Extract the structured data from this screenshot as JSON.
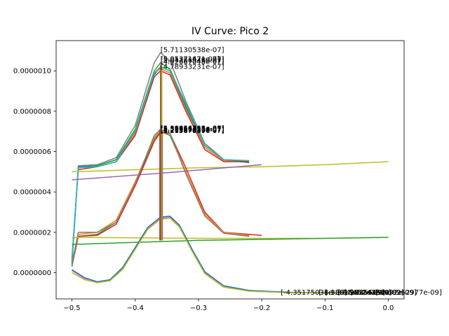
{
  "chart_data": {
    "type": "line",
    "title": "IV Curve: Pico 2",
    "xlabel": "",
    "ylabel": "",
    "xlim": [
      -0.525,
      0.025
    ],
    "ylim": [
      -1.3e-07,
      1.15e-06
    ],
    "xticks": [
      -0.5,
      -0.4,
      -0.3,
      -0.2,
      -0.1,
      0.0
    ],
    "xtick_labels": [
      "−0.5",
      "−0.4",
      "−0.3",
      "−0.2",
      "−0.1",
      "0.0"
    ],
    "yticks": [
      0.0,
      2e-07,
      4e-07,
      6e-07,
      8e-07,
      1e-06
    ],
    "ytick_labels": [
      "0.0000000",
      "0.0000002",
      "0.0000004",
      "0.0000006",
      "0.0000008",
      "0.0000010"
    ],
    "grid": false,
    "legend": "none",
    "series": [
      {
        "color": "#1f77b4",
        "values": [
          [
            -0.5,
            5e-08
          ],
          [
            -0.49,
            5.25e-07
          ],
          [
            -0.46,
            5.3e-07
          ],
          [
            -0.43,
            5.6e-07
          ],
          [
            -0.4,
            7e-07
          ],
          [
            -0.37,
            9.8e-07
          ],
          [
            -0.36,
            1.02e-06
          ],
          [
            -0.345,
            1e-06
          ],
          [
            -0.32,
            8.2e-07
          ],
          [
            -0.29,
            6.3e-07
          ],
          [
            -0.26,
            5.6e-07
          ],
          [
            -0.22,
            5.45e-07
          ]
        ]
      },
      {
        "color": "#ff7f0e",
        "values": [
          [
            -0.5,
            6e-08
          ],
          [
            -0.49,
            5.2e-07
          ],
          [
            -0.46,
            5.25e-07
          ],
          [
            -0.43,
            5.5e-07
          ],
          [
            -0.4,
            6.9e-07
          ],
          [
            -0.37,
            9.9e-07
          ],
          [
            -0.36,
            1.01e-06
          ],
          [
            -0.345,
            9.9e-07
          ],
          [
            -0.32,
            8.1e-07
          ],
          [
            -0.29,
            6.2e-07
          ],
          [
            -0.26,
            5.55e-07
          ],
          [
            -0.22,
            5.5e-07
          ]
        ]
      },
      {
        "color": "#2ca02c",
        "values": [
          [
            -0.5,
            4e-08
          ],
          [
            -0.49,
            5.2e-07
          ],
          [
            -0.46,
            5.3e-07
          ],
          [
            -0.43,
            5.6e-07
          ],
          [
            -0.4,
            7.1e-07
          ],
          [
            -0.37,
            1e-06
          ],
          [
            -0.36,
            1.04e-06
          ],
          [
            -0.345,
            1.01e-06
          ],
          [
            -0.32,
            8.3e-07
          ],
          [
            -0.29,
            6.4e-07
          ],
          [
            -0.26,
            5.6e-07
          ],
          [
            -0.22,
            5.5e-07
          ]
        ]
      },
      {
        "color": "#d62728",
        "values": [
          [
            -0.5,
            7e-08
          ],
          [
            -0.49,
            5.1e-07
          ],
          [
            -0.46,
            5.25e-07
          ],
          [
            -0.43,
            5.5e-07
          ],
          [
            -0.4,
            6.8e-07
          ],
          [
            -0.37,
            9.7e-07
          ],
          [
            -0.36,
            1e-06
          ],
          [
            -0.345,
            9.8e-07
          ],
          [
            -0.32,
            8e-07
          ],
          [
            -0.29,
            6.1e-07
          ],
          [
            -0.26,
            5.5e-07
          ],
          [
            -0.22,
            5.5e-07
          ]
        ]
      },
      {
        "color": "#7f7f7f",
        "values": [
          [
            -0.5,
            5e-08
          ],
          [
            -0.49,
            5.3e-07
          ],
          [
            -0.46,
            5.35e-07
          ],
          [
            -0.43,
            5.7e-07
          ],
          [
            -0.4,
            7.3e-07
          ],
          [
            -0.37,
            1.04e-06
          ],
          [
            -0.36,
            1.09e-06
          ],
          [
            -0.345,
            1.05e-06
          ],
          [
            -0.32,
            8.5e-07
          ],
          [
            -0.29,
            6.4e-07
          ],
          [
            -0.26,
            5.6e-07
          ],
          [
            -0.22,
            5.55e-07
          ]
        ]
      },
      {
        "color": "#17becf",
        "values": [
          [
            -0.5,
            6e-08
          ],
          [
            -0.49,
            5.2e-07
          ],
          [
            -0.46,
            5.25e-07
          ],
          [
            -0.43,
            5.5e-07
          ],
          [
            -0.4,
            7e-07
          ],
          [
            -0.37,
            9.9e-07
          ],
          [
            -0.36,
            1.02e-06
          ],
          [
            -0.345,
            1e-06
          ],
          [
            -0.32,
            8.4e-07
          ],
          [
            -0.29,
            6.3e-07
          ],
          [
            -0.26,
            5.6e-07
          ],
          [
            -0.22,
            5.55e-07
          ]
        ]
      },
      {
        "color": "#bcbd22",
        "values": [
          [
            -0.5,
            5e-07
          ],
          [
            -0.4,
            5.1e-07
          ],
          [
            -0.3,
            5.2e-07
          ],
          [
            -0.2,
            5.25e-07
          ],
          [
            -0.1,
            5.35e-07
          ],
          [
            0.0,
            5.5e-07
          ]
        ]
      },
      {
        "color": "#9467bd",
        "values": [
          [
            -0.5,
            4.6e-07
          ],
          [
            -0.35,
            4.95e-07
          ],
          [
            -0.2,
            5.35e-07
          ]
        ]
      },
      {
        "color": "#2ca02c",
        "values": [
          [
            -0.5,
            3e-08
          ],
          [
            -0.49,
            1.8e-07
          ],
          [
            -0.46,
            1.9e-07
          ],
          [
            -0.43,
            2.5e-07
          ],
          [
            -0.4,
            4.4e-07
          ],
          [
            -0.37,
            6.6e-07
          ],
          [
            -0.36,
            7e-07
          ],
          [
            -0.345,
            6.8e-07
          ],
          [
            -0.32,
            5e-07
          ],
          [
            -0.29,
            2.9e-07
          ],
          [
            -0.26,
            2e-07
          ],
          [
            -0.22,
            1.8e-07
          ]
        ]
      },
      {
        "color": "#d62728",
        "values": [
          [
            -0.5,
            4e-08
          ],
          [
            -0.49,
            1.8e-07
          ],
          [
            -0.46,
            1.85e-07
          ],
          [
            -0.43,
            2.4e-07
          ],
          [
            -0.4,
            4.3e-07
          ],
          [
            -0.37,
            6.5e-07
          ],
          [
            -0.36,
            6.95e-07
          ],
          [
            -0.345,
            6.9e-07
          ],
          [
            -0.32,
            5.2e-07
          ],
          [
            -0.29,
            3e-07
          ],
          [
            -0.26,
            2e-07
          ],
          [
            -0.2,
            1.85e-07
          ]
        ]
      },
      {
        "color": "#ff7f0e",
        "values": [
          [
            -0.5,
            5e-08
          ],
          [
            -0.49,
            1.9e-07
          ],
          [
            -0.46,
            2e-07
          ],
          [
            -0.43,
            2.6e-07
          ],
          [
            -0.4,
            4.5e-07
          ],
          [
            -0.37,
            6.7e-07
          ],
          [
            -0.36,
            7.1e-07
          ],
          [
            -0.345,
            6.9e-07
          ],
          [
            -0.32,
            5e-07
          ],
          [
            -0.29,
            2.9e-07
          ],
          [
            -0.26,
            2e-07
          ],
          [
            -0.22,
            1.85e-07
          ]
        ]
      },
      {
        "color": "#7f7f7f",
        "values": [
          [
            -0.5,
            4e-08
          ],
          [
            -0.49,
            2e-07
          ],
          [
            -0.46,
            2e-07
          ],
          [
            -0.43,
            2.5e-07
          ],
          [
            -0.4,
            4.4e-07
          ],
          [
            -0.37,
            6.8e-07
          ],
          [
            -0.36,
            7.1e-07
          ],
          [
            -0.345,
            6.9e-07
          ],
          [
            -0.32,
            4.9e-07
          ],
          [
            -0.29,
            2.8e-07
          ],
          [
            -0.26,
            1.95e-07
          ],
          [
            -0.22,
            1.8e-07
          ]
        ]
      },
      {
        "color": "#bcbd22",
        "values": [
          [
            -0.5,
            1.75e-07
          ],
          [
            -0.3,
            1.7e-07
          ],
          [
            -0.1,
            1.7e-07
          ],
          [
            0.0,
            1.75e-07
          ]
        ]
      },
      {
        "color": "#2ca02c",
        "values": [
          [
            -0.5,
            1.4e-07
          ],
          [
            -0.4,
            1.5e-07
          ],
          [
            -0.3,
            1.6e-07
          ],
          [
            -0.2,
            1.65e-07
          ],
          [
            -0.1,
            1.7e-07
          ],
          [
            0.0,
            1.75e-07
          ]
        ]
      },
      {
        "color": "#e377c2",
        "values": [
          [
            -0.5,
            1e-08
          ],
          [
            -0.48,
            -3e-08
          ],
          [
            -0.46,
            -5e-08
          ],
          [
            -0.44,
            -4e-08
          ],
          [
            -0.42,
            2e-08
          ],
          [
            -0.4,
            1.2e-07
          ],
          [
            -0.38,
            2.2e-07
          ],
          [
            -0.36,
            2.7e-07
          ],
          [
            -0.345,
            2.75e-07
          ],
          [
            -0.33,
            2.3e-07
          ],
          [
            -0.31,
            1.1e-07
          ],
          [
            -0.29,
            0.0
          ],
          [
            -0.26,
            -7e-08
          ],
          [
            -0.22,
            -9e-08
          ],
          [
            -0.15,
            -1e-07
          ],
          [
            0.0,
            -1e-07
          ]
        ]
      },
      {
        "color": "#1f77b4",
        "values": [
          [
            -0.5,
            1.5e-08
          ],
          [
            -0.48,
            -2.5e-08
          ],
          [
            -0.46,
            -4.5e-08
          ],
          [
            -0.44,
            -3.5e-08
          ],
          [
            -0.42,
            2.5e-08
          ],
          [
            -0.4,
            1.25e-07
          ],
          [
            -0.38,
            2.25e-07
          ],
          [
            -0.36,
            2.75e-07
          ],
          [
            -0.345,
            2.8e-07
          ],
          [
            -0.33,
            2.35e-07
          ],
          [
            -0.31,
            1.15e-07
          ],
          [
            -0.29,
            5e-09
          ],
          [
            -0.26,
            -6.5e-08
          ],
          [
            -0.22,
            -8.8e-08
          ],
          [
            -0.15,
            -9.8e-08
          ],
          [
            0.0,
            -1e-07
          ]
        ]
      },
      {
        "color": "#bcbd22",
        "values": [
          [
            -0.5,
            0.0
          ],
          [
            -0.48,
            -3.5e-08
          ],
          [
            -0.46,
            -5e-08
          ],
          [
            -0.44,
            -4e-08
          ],
          [
            -0.42,
            1.5e-08
          ],
          [
            -0.4,
            1.15e-07
          ],
          [
            -0.38,
            2.15e-07
          ],
          [
            -0.36,
            2.65e-07
          ],
          [
            -0.345,
            2.7e-07
          ],
          [
            -0.33,
            2.25e-07
          ],
          [
            -0.31,
            1.05e-07
          ],
          [
            -0.29,
            -5e-09
          ],
          [
            -0.26,
            -7.2e-08
          ],
          [
            -0.22,
            -9.2e-08
          ],
          [
            -0.15,
            -1e-07
          ],
          [
            0.0,
            -1e-07
          ]
        ]
      }
    ],
    "peak_markers": [
      {
        "color": "#8c564b",
        "x": -0.36,
        "y_from": 1.6e-07,
        "y_to": 1.03e-06
      },
      {
        "color": "#2ca02c",
        "x": -0.359,
        "y_from": 1.6e-07,
        "y_to": 1e-06
      },
      {
        "color": "#ff7f0e",
        "x": -0.358,
        "y_from": 1.6e-07,
        "y_to": 1.02e-06
      },
      {
        "color": "#d62728",
        "x": -0.361,
        "y_from": 1.6e-07,
        "y_to": 7.1e-07
      },
      {
        "color": "#7f7f7f",
        "x": -0.357,
        "y_from": 1.6e-07,
        "y_to": 7e-07
      }
    ],
    "annotations": [
      {
        "text": "[5.71130538e-07]",
        "x": -0.36,
        "y": 1.0925e-06
      },
      {
        "text": "[5.0537162e-07]",
        "x": -0.36,
        "y": 1.047e-06
      },
      {
        "text": "[5.01321471e-07]",
        "x": -0.36,
        "y": 1.047e-06
      },
      {
        "text": "[5.04356546e-07]",
        "x": -0.36,
        "y": 1.04e-06
      },
      {
        "text": "[4.92667048e-07]",
        "x": -0.36,
        "y": 1.033e-06
      },
      {
        "text": "[4.78933231e-07]",
        "x": -0.36,
        "y": 1.01e-06
      },
      {
        "text": "[5.39966738e-07]",
        "x": -0.36,
        "y": 7.05e-07
      },
      {
        "text": "[5.36656315e-07]",
        "x": -0.36,
        "y": 7.05e-07
      },
      {
        "text": "[5.31656315e-07]",
        "x": -0.36,
        "y": 7e-07
      },
      {
        "text": "[5.28365633e-07]",
        "x": -0.36,
        "y": 6.97e-07
      },
      {
        "text": "[5.21587839e-07]",
        "x": -0.36,
        "y": 6.95e-07
      },
      {
        "text": "[5.21587839e-07]",
        "x": -0.36,
        "y": 6.92e-07
      },
      {
        "text": "[-4.35175038e-09]",
        "x": -0.17,
        "y": -1.1e-07
      },
      {
        "text": "[-1.33615652e-09]",
        "x": -0.11,
        "y": -1.1e-07
      },
      {
        "text": "[-1.37416855e-09]",
        "x": -0.1,
        "y": -1.1e-07
      },
      {
        "text": "[-1.98354552e-09]",
        "x": -0.08,
        "y": -1.1e-07
      },
      {
        "text": "[-1.74285092e-09]",
        "x": -0.06,
        "y": -1.1e-07
      },
      {
        "text": "[-4.08262977e-09]",
        "x": -0.02,
        "y": -1.1e-07
      }
    ]
  }
}
